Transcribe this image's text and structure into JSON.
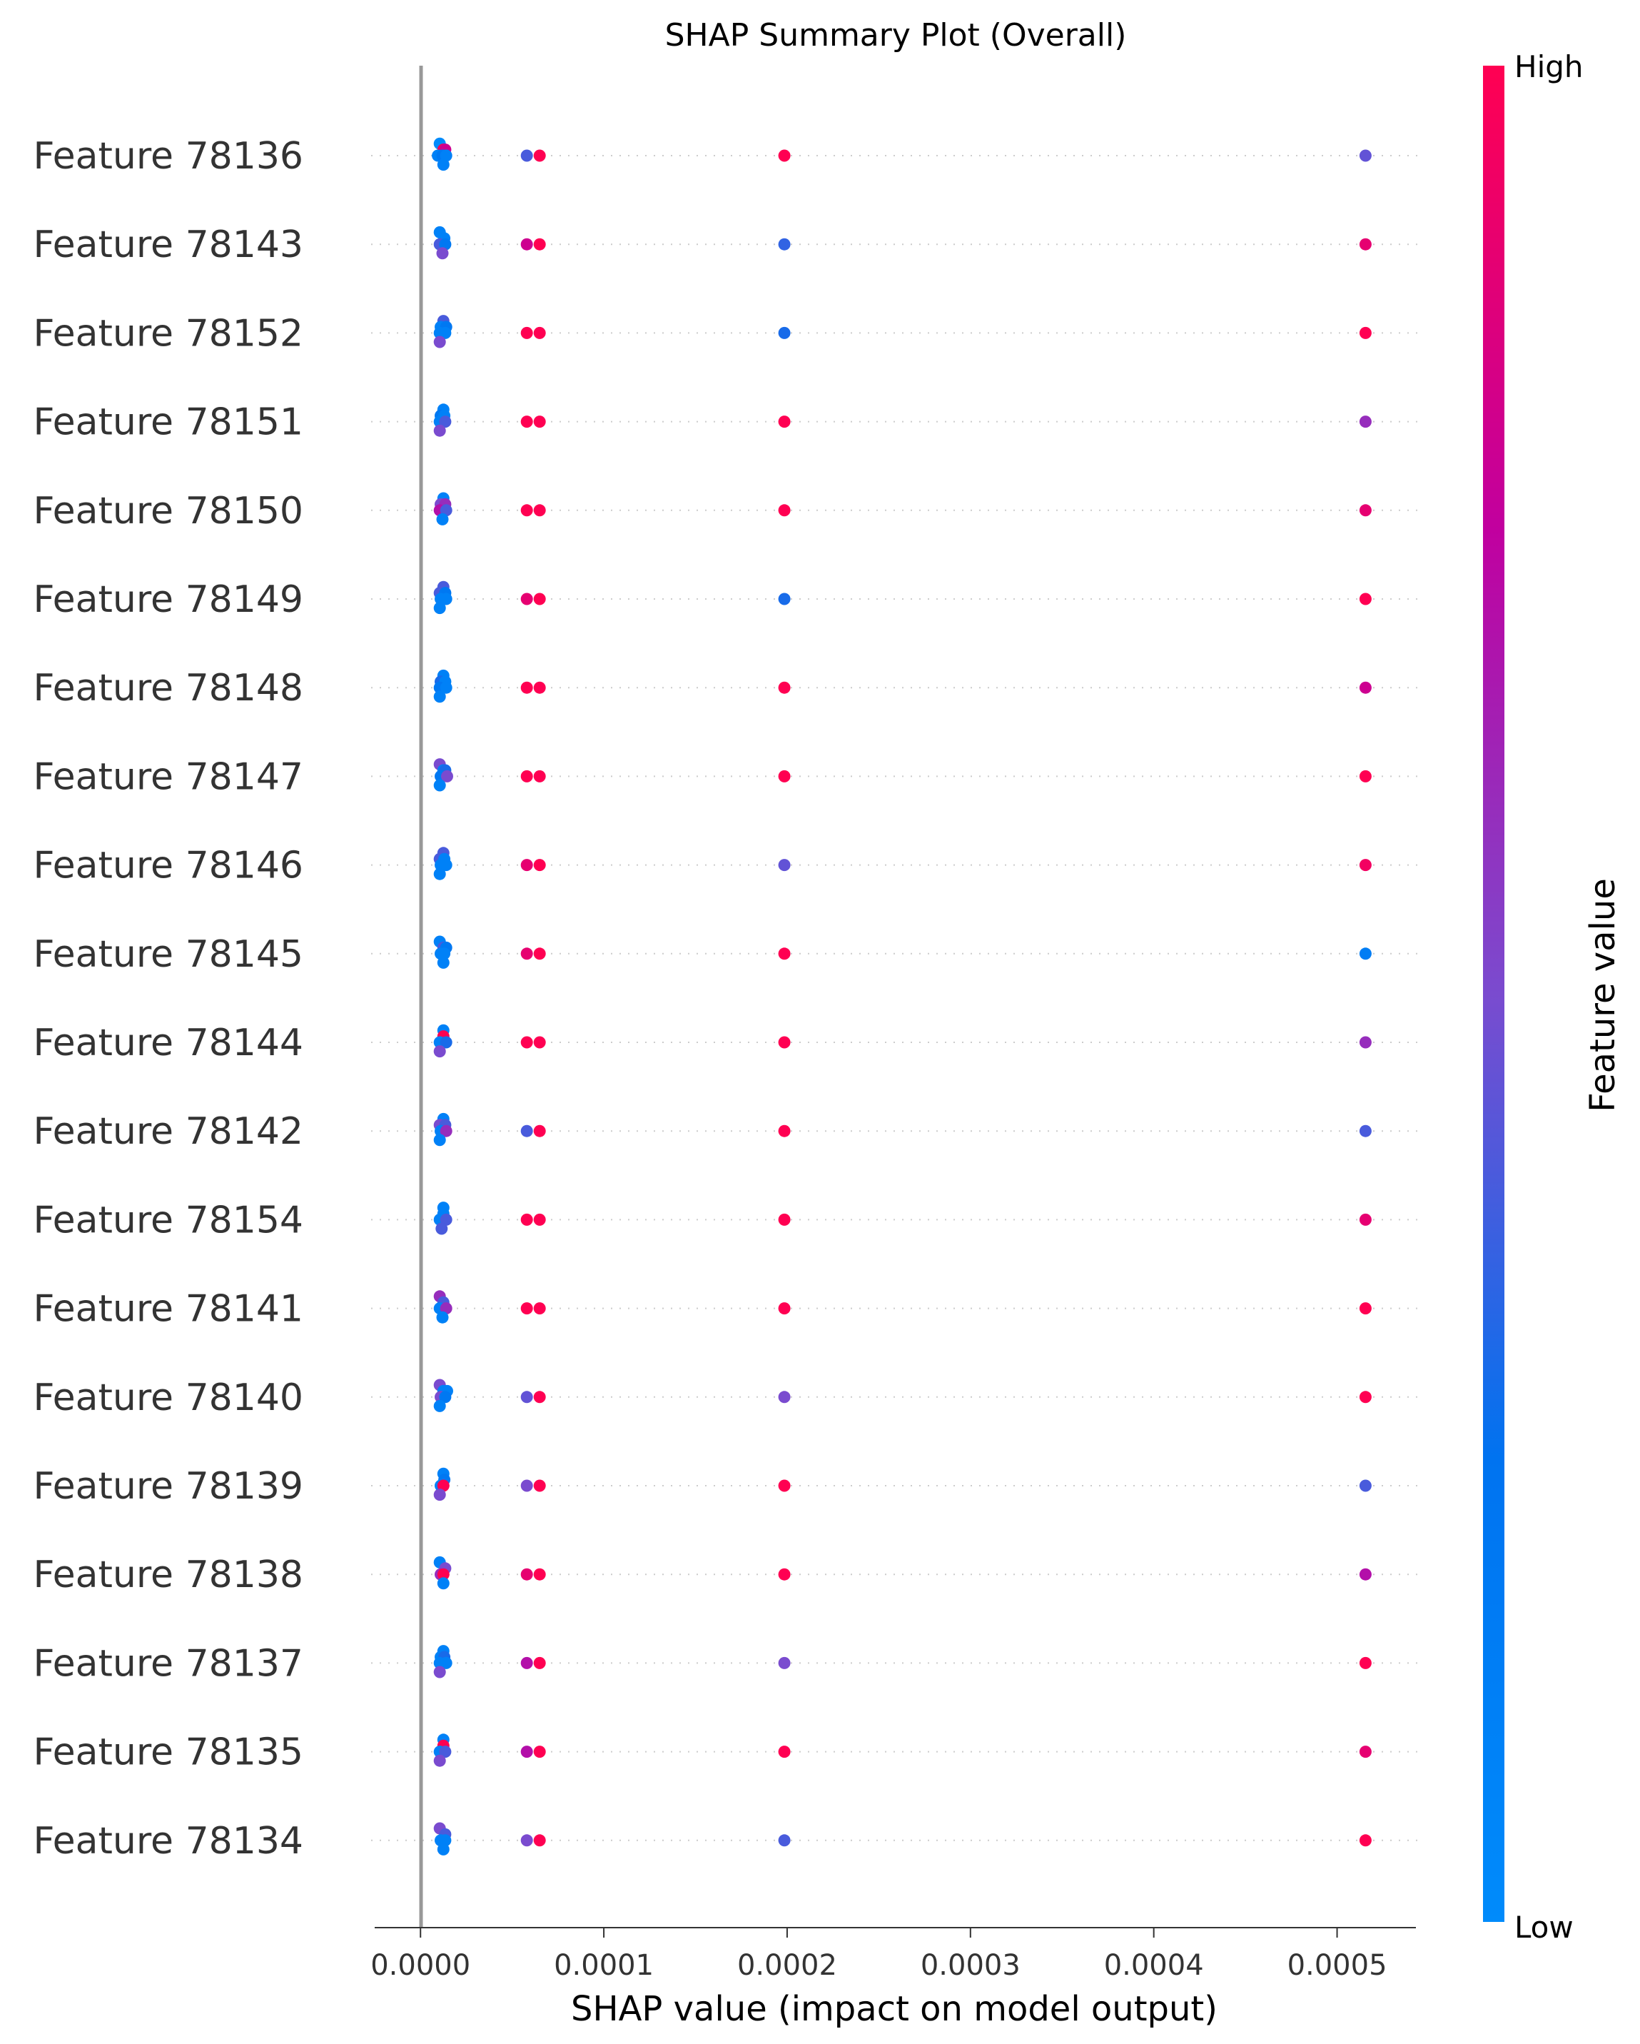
{
  "chart_data": {
    "type": "scatter",
    "title": "SHAP Summary Plot (Overall)",
    "xlabel": "SHAP value (impact on model output)",
    "xlim": [
      -2.5e-05,
      0.000543
    ],
    "xticks": [
      "0.0000",
      "0.0001",
      "0.0002",
      "0.0003",
      "0.0004",
      "0.0005"
    ],
    "xtick_values": [
      0,
      0.0001,
      0.0002,
      0.0003,
      0.0004,
      0.0005
    ],
    "colorbar": {
      "label": "Feature value",
      "high": "High",
      "low": "Low",
      "low_color": "#008bfb",
      "high_color": "#ff0052"
    },
    "features": [
      {
        "name": "Feature 78136",
        "points": [
          [
            1.05e-05,
            0.0,
            -0.6
          ],
          [
            1.25e-05,
            1.0,
            -0.3
          ],
          [
            1.35e-05,
            0.8,
            -0.3
          ],
          [
            9.5e-06,
            0.1,
            0.0
          ],
          [
            1.2e-05,
            0.2,
            0.0
          ],
          [
            1.4e-05,
            0.1,
            0.0
          ],
          [
            1.25e-05,
            0.1,
            0.45
          ],
          [
            5.8e-05,
            0.4,
            0.0
          ],
          [
            6.5e-05,
            1.0,
            0.0
          ],
          [
            0.0001985,
            1.0,
            0.0
          ],
          [
            0.0005155,
            0.45,
            0.0
          ]
        ]
      },
      {
        "name": "Feature 78143",
        "points": [
          [
            1.05e-05,
            0.1,
            -0.6
          ],
          [
            1.3e-05,
            0.1,
            -0.3
          ],
          [
            1.05e-05,
            0.4,
            0.0
          ],
          [
            1.35e-05,
            0.2,
            0.0
          ],
          [
            1.2e-05,
            0.5,
            0.45
          ],
          [
            5.8e-05,
            0.8,
            0.0
          ],
          [
            6.5e-05,
            1.0,
            0.0
          ],
          [
            0.0001985,
            0.35,
            0.0
          ],
          [
            0.0005155,
            0.9,
            0.0
          ]
        ]
      },
      {
        "name": "Feature 78152",
        "points": [
          [
            1.25e-05,
            0.4,
            -0.6
          ],
          [
            1.1e-05,
            0.1,
            -0.3
          ],
          [
            1.4e-05,
            0.2,
            -0.3
          ],
          [
            1.05e-05,
            0.1,
            0.0
          ],
          [
            1.35e-05,
            0.1,
            0.0
          ],
          [
            1.05e-05,
            0.5,
            0.45
          ],
          [
            5.8e-05,
            1.0,
            0.0
          ],
          [
            6.5e-05,
            1.0,
            0.0
          ],
          [
            0.0001985,
            0.3,
            0.0
          ],
          [
            0.0005155,
            1.0,
            0.0
          ]
        ]
      },
      {
        "name": "Feature 78151",
        "points": [
          [
            1.25e-05,
            0.1,
            -0.6
          ],
          [
            1.1e-05,
            0.2,
            -0.3
          ],
          [
            1.3e-05,
            0.1,
            -0.3
          ],
          [
            1.05e-05,
            0.1,
            0.0
          ],
          [
            1.35e-05,
            0.4,
            0.0
          ],
          [
            1.05e-05,
            0.5,
            0.45
          ],
          [
            5.8e-05,
            1.0,
            0.0
          ],
          [
            6.5e-05,
            1.0,
            0.0
          ],
          [
            0.0001985,
            1.0,
            0.0
          ],
          [
            0.0005155,
            0.6,
            0.0
          ]
        ]
      },
      {
        "name": "Feature 78150",
        "points": [
          [
            1.25e-05,
            0.1,
            -0.6
          ],
          [
            1.1e-05,
            0.5,
            -0.3
          ],
          [
            1.35e-05,
            0.6,
            -0.3
          ],
          [
            1.05e-05,
            0.7,
            0.0
          ],
          [
            1.4e-05,
            0.4,
            0.0
          ],
          [
            1.2e-05,
            0.1,
            0.45
          ],
          [
            5.8e-05,
            1.0,
            0.0
          ],
          [
            6.5e-05,
            1.0,
            0.0
          ],
          [
            0.0001985,
            1.0,
            0.0
          ],
          [
            0.0005155,
            0.9,
            0.0
          ]
        ]
      },
      {
        "name": "Feature 78149",
        "points": [
          [
            1.25e-05,
            0.4,
            -0.6
          ],
          [
            1.05e-05,
            0.4,
            -0.3
          ],
          [
            1.35e-05,
            0.2,
            -0.3
          ],
          [
            1.1e-05,
            0.1,
            0.0
          ],
          [
            1.4e-05,
            0.1,
            0.0
          ],
          [
            1.05e-05,
            0.1,
            0.45
          ],
          [
            5.8e-05,
            0.9,
            0.0
          ],
          [
            6.5e-05,
            1.0,
            0.0
          ],
          [
            0.0001985,
            0.3,
            0.0
          ],
          [
            0.0005155,
            1.0,
            0.0
          ]
        ]
      },
      {
        "name": "Feature 78148",
        "points": [
          [
            1.25e-05,
            0.1,
            -0.6
          ],
          [
            1.1e-05,
            0.3,
            -0.3
          ],
          [
            1.35e-05,
            0.1,
            -0.3
          ],
          [
            1.05e-05,
            0.2,
            0.0
          ],
          [
            1.4e-05,
            0.1,
            0.0
          ],
          [
            1.05e-05,
            0.1,
            0.45
          ],
          [
            5.8e-05,
            1.0,
            0.0
          ],
          [
            6.5e-05,
            1.0,
            0.0
          ],
          [
            0.0001985,
            1.0,
            0.0
          ],
          [
            0.0005155,
            0.8,
            0.0
          ]
        ]
      },
      {
        "name": "Feature 78147",
        "points": [
          [
            1.05e-05,
            0.5,
            -0.6
          ],
          [
            1.25e-05,
            0.1,
            -0.3
          ],
          [
            1.35e-05,
            0.3,
            -0.3
          ],
          [
            1.1e-05,
            0.2,
            0.0
          ],
          [
            1.45e-05,
            0.5,
            0.0
          ],
          [
            1.05e-05,
            0.1,
            0.45
          ],
          [
            5.8e-05,
            1.0,
            0.0
          ],
          [
            6.5e-05,
            1.0,
            0.0
          ],
          [
            0.0001985,
            1.0,
            0.0
          ],
          [
            0.0005155,
            1.0,
            0.0
          ]
        ]
      },
      {
        "name": "Feature 78146",
        "points": [
          [
            1.25e-05,
            0.4,
            -0.6
          ],
          [
            1.05e-05,
            0.4,
            -0.3
          ],
          [
            1.3e-05,
            0.1,
            -0.3
          ],
          [
            1.1e-05,
            0.1,
            0.0
          ],
          [
            1.4e-05,
            0.1,
            0.0
          ],
          [
            1.05e-05,
            0.1,
            0.45
          ],
          [
            5.8e-05,
            0.9,
            0.0
          ],
          [
            6.5e-05,
            1.0,
            0.0
          ],
          [
            0.0001985,
            0.45,
            0.0
          ],
          [
            0.0005155,
            0.95,
            0.0
          ]
        ]
      },
      {
        "name": "Feature 78145",
        "points": [
          [
            1.05e-05,
            0.1,
            -0.6
          ],
          [
            1.25e-05,
            0.4,
            -0.3
          ],
          [
            1.4e-05,
            0.2,
            -0.3
          ],
          [
            1.1e-05,
            0.1,
            0.0
          ],
          [
            1.3e-05,
            0.1,
            0.0
          ],
          [
            1.25e-05,
            0.1,
            0.45
          ],
          [
            5.8e-05,
            0.9,
            0.0
          ],
          [
            6.5e-05,
            1.0,
            0.0
          ],
          [
            0.0001985,
            1.0,
            0.0
          ],
          [
            0.0005155,
            0.15,
            0.0
          ]
        ]
      },
      {
        "name": "Feature 78144",
        "points": [
          [
            1.25e-05,
            0.1,
            -0.6
          ],
          [
            1.25e-05,
            1.0,
            -0.3
          ],
          [
            1.05e-05,
            0.1,
            0.0
          ],
          [
            1.4e-05,
            0.3,
            0.0
          ],
          [
            1.05e-05,
            0.5,
            0.45
          ],
          [
            5.8e-05,
            1.0,
            0.0
          ],
          [
            6.5e-05,
            1.0,
            0.0
          ],
          [
            0.0001985,
            1.0,
            0.0
          ],
          [
            0.0005155,
            0.6,
            0.0
          ]
        ]
      },
      {
        "name": "Feature 78142",
        "points": [
          [
            1.25e-05,
            0.1,
            -0.6
          ],
          [
            1.05e-05,
            0.5,
            -0.3
          ],
          [
            1.35e-05,
            0.4,
            -0.3
          ],
          [
            1.1e-05,
            0.1,
            0.0
          ],
          [
            1.4e-05,
            0.6,
            0.0
          ],
          [
            1.05e-05,
            0.1,
            0.45
          ],
          [
            5.8e-05,
            0.4,
            0.0
          ],
          [
            6.5e-05,
            1.0,
            0.0
          ],
          [
            0.0001985,
            1.0,
            0.0
          ],
          [
            0.0005155,
            0.4,
            0.0
          ]
        ]
      },
      {
        "name": "Feature 78154",
        "points": [
          [
            1.25e-05,
            0.1,
            -0.6
          ],
          [
            1.25e-05,
            0.1,
            -0.3
          ],
          [
            1.05e-05,
            0.1,
            0.0
          ],
          [
            1.4e-05,
            0.4,
            0.0
          ],
          [
            1.15e-05,
            0.4,
            0.45
          ],
          [
            5.8e-05,
            1.0,
            0.0
          ],
          [
            6.5e-05,
            1.0,
            0.0
          ],
          [
            0.0001985,
            1.0,
            0.0
          ],
          [
            0.0005155,
            0.9,
            0.0
          ]
        ]
      },
      {
        "name": "Feature 78141",
        "points": [
          [
            1.05e-05,
            0.6,
            -0.6
          ],
          [
            1.25e-05,
            0.4,
            -0.3
          ],
          [
            1.05e-05,
            0.1,
            0.0
          ],
          [
            1.4e-05,
            0.6,
            0.0
          ],
          [
            1.2e-05,
            0.1,
            0.45
          ],
          [
            5.8e-05,
            1.0,
            0.0
          ],
          [
            6.5e-05,
            1.0,
            0.0
          ],
          [
            0.0001985,
            1.0,
            0.0
          ],
          [
            0.0005155,
            1.0,
            0.0
          ]
        ]
      },
      {
        "name": "Feature 78140",
        "points": [
          [
            1.05e-05,
            0.5,
            -0.6
          ],
          [
            1.25e-05,
            0.1,
            -0.3
          ],
          [
            1.45e-05,
            0.1,
            -0.3
          ],
          [
            1.1e-05,
            0.5,
            0.0
          ],
          [
            1.35e-05,
            0.2,
            0.0
          ],
          [
            1.05e-05,
            0.1,
            0.45
          ],
          [
            5.8e-05,
            0.45,
            0.0
          ],
          [
            6.5e-05,
            1.0,
            0.0
          ],
          [
            0.0001985,
            0.5,
            0.0
          ],
          [
            0.0005155,
            1.0,
            0.0
          ]
        ]
      },
      {
        "name": "Feature 78139",
        "points": [
          [
            1.25e-05,
            0.1,
            -0.6
          ],
          [
            1.3e-05,
            0.2,
            -0.3
          ],
          [
            1.1e-05,
            0.1,
            0.0
          ],
          [
            1.25e-05,
            1.0,
            0.0
          ],
          [
            1.05e-05,
            0.5,
            0.45
          ],
          [
            5.8e-05,
            0.5,
            0.0
          ],
          [
            6.5e-05,
            1.0,
            0.0
          ],
          [
            0.0001985,
            1.0,
            0.0
          ],
          [
            0.0005155,
            0.4,
            0.0
          ]
        ]
      },
      {
        "name": "Feature 78138",
        "points": [
          [
            1.05e-05,
            0.1,
            -0.6
          ],
          [
            1.35e-05,
            0.5,
            -0.3
          ],
          [
            1.1e-05,
            0.6,
            0.0
          ],
          [
            1.25e-05,
            1.0,
            0.0
          ],
          [
            1.25e-05,
            0.1,
            0.45
          ],
          [
            5.8e-05,
            0.9,
            0.0
          ],
          [
            6.5e-05,
            1.0,
            0.0
          ],
          [
            0.0001985,
            1.0,
            0.0
          ],
          [
            0.0005155,
            0.7,
            0.0
          ]
        ]
      },
      {
        "name": "Feature 78137",
        "points": [
          [
            1.25e-05,
            0.1,
            -0.6
          ],
          [
            1.1e-05,
            0.1,
            -0.3
          ],
          [
            1.3e-05,
            0.3,
            -0.3
          ],
          [
            1.05e-05,
            0.1,
            0.0
          ],
          [
            1.4e-05,
            0.1,
            0.0
          ],
          [
            1.05e-05,
            0.5,
            0.45
          ],
          [
            5.8e-05,
            0.7,
            0.0
          ],
          [
            6.5e-05,
            1.0,
            0.0
          ],
          [
            0.0001985,
            0.5,
            0.0
          ],
          [
            0.0005155,
            1.0,
            0.0
          ]
        ]
      },
      {
        "name": "Feature 78135",
        "points": [
          [
            1.25e-05,
            0.1,
            -0.6
          ],
          [
            1.25e-05,
            1.0,
            -0.3
          ],
          [
            1.05e-05,
            0.1,
            0.0
          ],
          [
            1.35e-05,
            0.4,
            0.0
          ],
          [
            1.05e-05,
            0.5,
            0.45
          ],
          [
            5.8e-05,
            0.7,
            0.0
          ],
          [
            6.5e-05,
            1.0,
            0.0
          ],
          [
            0.0001985,
            1.0,
            0.0
          ],
          [
            0.0005155,
            0.9,
            0.0
          ]
        ]
      },
      {
        "name": "Feature 78134",
        "points": [
          [
            1.05e-05,
            0.5,
            -0.6
          ],
          [
            1.35e-05,
            0.4,
            -0.3
          ],
          [
            1.1e-05,
            0.1,
            0.0
          ],
          [
            1.35e-05,
            0.1,
            0.0
          ],
          [
            1.25e-05,
            0.1,
            0.45
          ],
          [
            5.8e-05,
            0.5,
            0.0
          ],
          [
            6.5e-05,
            1.0,
            0.0
          ],
          [
            0.0001985,
            0.4,
            0.0
          ],
          [
            0.0005155,
            1.0,
            0.0
          ]
        ]
      }
    ]
  }
}
